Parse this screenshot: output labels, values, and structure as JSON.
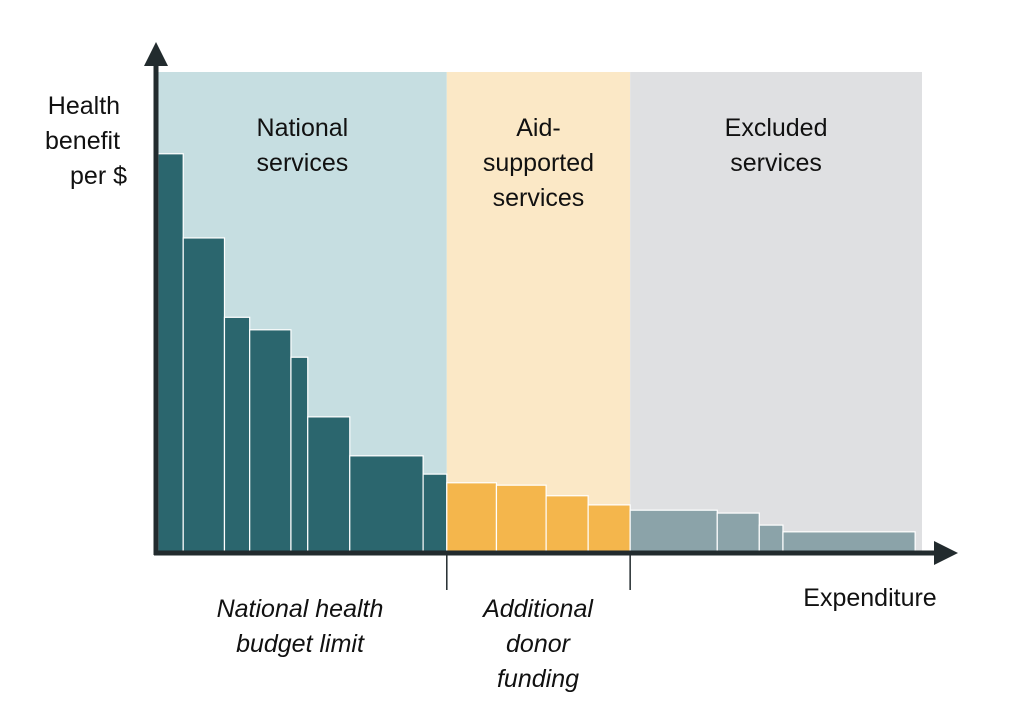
{
  "chart_data": {
    "type": "bar",
    "variable_width": true,
    "ylabel": [
      "Health",
      "benefit",
      "per $"
    ],
    "xlabel": "Expenditure",
    "xlim": [
      0,
      100
    ],
    "ylim": [
      0,
      100
    ],
    "grid": false,
    "regions": [
      {
        "key": "national",
        "label": [
          "National",
          "services"
        ],
        "x_start": 0,
        "x_end": 37.8,
        "bg_color": "#c6dee1",
        "bar_color": "#2b666e"
      },
      {
        "key": "aid",
        "label": [
          "Aid-",
          "supported",
          "services"
        ],
        "x_start": 37.8,
        "x_end": 61.8,
        "bg_color": "#fbe8c6",
        "bar_color": "#f4b64c"
      },
      {
        "key": "excluded",
        "label": [
          "Excluded",
          "services"
        ],
        "x_start": 61.8,
        "x_end": 100,
        "bg_color": "#dfe0e2",
        "bar_color": "#8ba3a9"
      }
    ],
    "bars": [
      {
        "region": "national",
        "width": 3.3,
        "value": 83
      },
      {
        "region": "national",
        "width": 5.4,
        "value": 65.5
      },
      {
        "region": "national",
        "width": 3.3,
        "value": 49
      },
      {
        "region": "national",
        "width": 5.4,
        "value": 46.4
      },
      {
        "region": "national",
        "width": 2.2,
        "value": 40.7
      },
      {
        "region": "national",
        "width": 5.5,
        "value": 28.3
      },
      {
        "region": "national",
        "width": 9.6,
        "value": 20.2
      },
      {
        "region": "national",
        "width": 3.1,
        "value": 16.4
      },
      {
        "region": "aid",
        "width": 6.5,
        "value": 14.6
      },
      {
        "region": "aid",
        "width": 6.5,
        "value": 14.1
      },
      {
        "region": "aid",
        "width": 5.5,
        "value": 11.9
      },
      {
        "region": "aid",
        "width": 5.5,
        "value": 10
      },
      {
        "region": "excluded",
        "width": 11.4,
        "value": 8.9
      },
      {
        "region": "excluded",
        "width": 5.5,
        "value": 8.3
      },
      {
        "region": "excluded",
        "width": 3.1,
        "value": 5.8
      },
      {
        "region": "excluded",
        "width": 17.3,
        "value": 4.4
      }
    ],
    "annotations": [
      {
        "x": 37.8,
        "label": [
          "National health",
          "budget limit"
        ]
      },
      {
        "x": 61.8,
        "label": [
          "Additional",
          "donor",
          "funding"
        ]
      }
    ],
    "axis_color": "#222b2e"
  }
}
